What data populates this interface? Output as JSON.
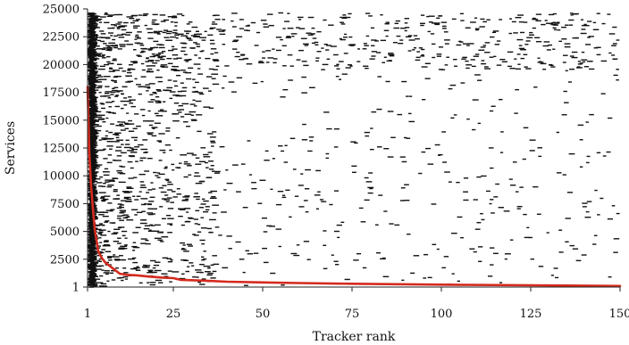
{
  "chart_data": {
    "type": "scatter",
    "title": "",
    "xlabel": "Tracker rank",
    "ylabel": "Services",
    "xlim": [
      1,
      150
    ],
    "ylim": [
      1,
      25000
    ],
    "x_ticks": [
      1,
      25,
      50,
      75,
      100,
      125,
      150
    ],
    "x_tick_labels": [
      "1",
      "25",
      "50",
      "75",
      "100",
      "125",
      "150"
    ],
    "y_ticks": [
      1,
      2500,
      5000,
      7500,
      10000,
      12500,
      15000,
      17500,
      20000,
      22500,
      25000
    ],
    "y_tick_labels": [
      "1",
      "2500",
      "5000",
      "7500",
      "10000",
      "12500",
      "15000",
      "17500",
      "20000",
      "22500",
      "25000"
    ],
    "grid": false,
    "legend": "none",
    "series": [
      {
        "kind": "presence-marks",
        "color": "#111111",
        "description_note": "",
        "points": []
      },
      {
        "kind": "curve",
        "color": "#d42a1e",
        "x": [
          1,
          1.5,
          2,
          2.5,
          3,
          4,
          5,
          6,
          8,
          10,
          12,
          15,
          18,
          20,
          22,
          25,
          27,
          30,
          35,
          40,
          50,
          60,
          75,
          100,
          125,
          150
        ],
        "y": [
          18000,
          12000,
          9000,
          7000,
          5200,
          3200,
          2600,
          2200,
          1700,
          1200,
          1100,
          1050,
          950,
          900,
          850,
          800,
          650,
          620,
          550,
          480,
          420,
          360,
          300,
          220,
          160,
          100
        ]
      }
    ]
  }
}
